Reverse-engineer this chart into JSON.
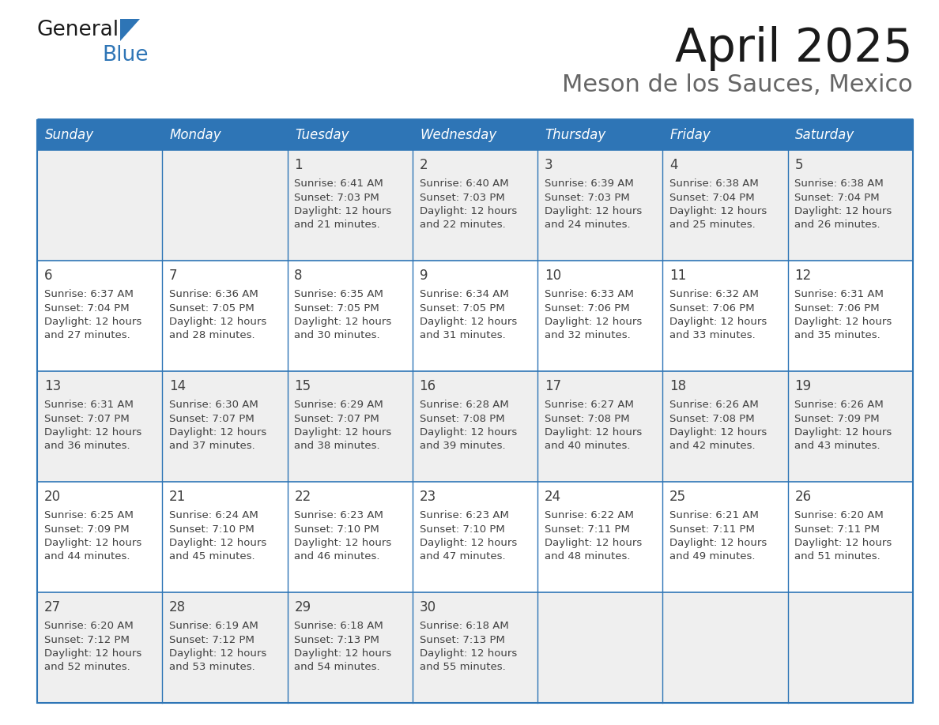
{
  "title": "April 2025",
  "subtitle": "Meson de los Sauces, Mexico",
  "header_color": "#2E75B6",
  "header_text_color": "#FFFFFF",
  "grid_line_color": "#2E75B6",
  "day_names": [
    "Sunday",
    "Monday",
    "Tuesday",
    "Wednesday",
    "Thursday",
    "Friday",
    "Saturday"
  ],
  "cell_bg_row0": "#EFEFEF",
  "cell_bg_row1": "#FFFFFF",
  "cell_bg_row2": "#EFEFEF",
  "cell_bg_row3": "#FFFFFF",
  "cell_bg_row4": "#EFEFEF",
  "text_color": "#404040",
  "days": [
    {
      "day": 1,
      "col": 2,
      "row": 0,
      "sunrise": "6:41 AM",
      "sunset": "7:03 PM",
      "daylight_line1": "Daylight: 12 hours",
      "daylight_line2": "and 21 minutes."
    },
    {
      "day": 2,
      "col": 3,
      "row": 0,
      "sunrise": "6:40 AM",
      "sunset": "7:03 PM",
      "daylight_line1": "Daylight: 12 hours",
      "daylight_line2": "and 22 minutes."
    },
    {
      "day": 3,
      "col": 4,
      "row": 0,
      "sunrise": "6:39 AM",
      "sunset": "7:03 PM",
      "daylight_line1": "Daylight: 12 hours",
      "daylight_line2": "and 24 minutes."
    },
    {
      "day": 4,
      "col": 5,
      "row": 0,
      "sunrise": "6:38 AM",
      "sunset": "7:04 PM",
      "daylight_line1": "Daylight: 12 hours",
      "daylight_line2": "and 25 minutes."
    },
    {
      "day": 5,
      "col": 6,
      "row": 0,
      "sunrise": "6:38 AM",
      "sunset": "7:04 PM",
      "daylight_line1": "Daylight: 12 hours",
      "daylight_line2": "and 26 minutes."
    },
    {
      "day": 6,
      "col": 0,
      "row": 1,
      "sunrise": "6:37 AM",
      "sunset": "7:04 PM",
      "daylight_line1": "Daylight: 12 hours",
      "daylight_line2": "and 27 minutes."
    },
    {
      "day": 7,
      "col": 1,
      "row": 1,
      "sunrise": "6:36 AM",
      "sunset": "7:05 PM",
      "daylight_line1": "Daylight: 12 hours",
      "daylight_line2": "and 28 minutes."
    },
    {
      "day": 8,
      "col": 2,
      "row": 1,
      "sunrise": "6:35 AM",
      "sunset": "7:05 PM",
      "daylight_line1": "Daylight: 12 hours",
      "daylight_line2": "and 30 minutes."
    },
    {
      "day": 9,
      "col": 3,
      "row": 1,
      "sunrise": "6:34 AM",
      "sunset": "7:05 PM",
      "daylight_line1": "Daylight: 12 hours",
      "daylight_line2": "and 31 minutes."
    },
    {
      "day": 10,
      "col": 4,
      "row": 1,
      "sunrise": "6:33 AM",
      "sunset": "7:06 PM",
      "daylight_line1": "Daylight: 12 hours",
      "daylight_line2": "and 32 minutes."
    },
    {
      "day": 11,
      "col": 5,
      "row": 1,
      "sunrise": "6:32 AM",
      "sunset": "7:06 PM",
      "daylight_line1": "Daylight: 12 hours",
      "daylight_line2": "and 33 minutes."
    },
    {
      "day": 12,
      "col": 6,
      "row": 1,
      "sunrise": "6:31 AM",
      "sunset": "7:06 PM",
      "daylight_line1": "Daylight: 12 hours",
      "daylight_line2": "and 35 minutes."
    },
    {
      "day": 13,
      "col": 0,
      "row": 2,
      "sunrise": "6:31 AM",
      "sunset": "7:07 PM",
      "daylight_line1": "Daylight: 12 hours",
      "daylight_line2": "and 36 minutes."
    },
    {
      "day": 14,
      "col": 1,
      "row": 2,
      "sunrise": "6:30 AM",
      "sunset": "7:07 PM",
      "daylight_line1": "Daylight: 12 hours",
      "daylight_line2": "and 37 minutes."
    },
    {
      "day": 15,
      "col": 2,
      "row": 2,
      "sunrise": "6:29 AM",
      "sunset": "7:07 PM",
      "daylight_line1": "Daylight: 12 hours",
      "daylight_line2": "and 38 minutes."
    },
    {
      "day": 16,
      "col": 3,
      "row": 2,
      "sunrise": "6:28 AM",
      "sunset": "7:08 PM",
      "daylight_line1": "Daylight: 12 hours",
      "daylight_line2": "and 39 minutes."
    },
    {
      "day": 17,
      "col": 4,
      "row": 2,
      "sunrise": "6:27 AM",
      "sunset": "7:08 PM",
      "daylight_line1": "Daylight: 12 hours",
      "daylight_line2": "and 40 minutes."
    },
    {
      "day": 18,
      "col": 5,
      "row": 2,
      "sunrise": "6:26 AM",
      "sunset": "7:08 PM",
      "daylight_line1": "Daylight: 12 hours",
      "daylight_line2": "and 42 minutes."
    },
    {
      "day": 19,
      "col": 6,
      "row": 2,
      "sunrise": "6:26 AM",
      "sunset": "7:09 PM",
      "daylight_line1": "Daylight: 12 hours",
      "daylight_line2": "and 43 minutes."
    },
    {
      "day": 20,
      "col": 0,
      "row": 3,
      "sunrise": "6:25 AM",
      "sunset": "7:09 PM",
      "daylight_line1": "Daylight: 12 hours",
      "daylight_line2": "and 44 minutes."
    },
    {
      "day": 21,
      "col": 1,
      "row": 3,
      "sunrise": "6:24 AM",
      "sunset": "7:10 PM",
      "daylight_line1": "Daylight: 12 hours",
      "daylight_line2": "and 45 minutes."
    },
    {
      "day": 22,
      "col": 2,
      "row": 3,
      "sunrise": "6:23 AM",
      "sunset": "7:10 PM",
      "daylight_line1": "Daylight: 12 hours",
      "daylight_line2": "and 46 minutes."
    },
    {
      "day": 23,
      "col": 3,
      "row": 3,
      "sunrise": "6:23 AM",
      "sunset": "7:10 PM",
      "daylight_line1": "Daylight: 12 hours",
      "daylight_line2": "and 47 minutes."
    },
    {
      "day": 24,
      "col": 4,
      "row": 3,
      "sunrise": "6:22 AM",
      "sunset": "7:11 PM",
      "daylight_line1": "Daylight: 12 hours",
      "daylight_line2": "and 48 minutes."
    },
    {
      "day": 25,
      "col": 5,
      "row": 3,
      "sunrise": "6:21 AM",
      "sunset": "7:11 PM",
      "daylight_line1": "Daylight: 12 hours",
      "daylight_line2": "and 49 minutes."
    },
    {
      "day": 26,
      "col": 6,
      "row": 3,
      "sunrise": "6:20 AM",
      "sunset": "7:11 PM",
      "daylight_line1": "Daylight: 12 hours",
      "daylight_line2": "and 51 minutes."
    },
    {
      "day": 27,
      "col": 0,
      "row": 4,
      "sunrise": "6:20 AM",
      "sunset": "7:12 PM",
      "daylight_line1": "Daylight: 12 hours",
      "daylight_line2": "and 52 minutes."
    },
    {
      "day": 28,
      "col": 1,
      "row": 4,
      "sunrise": "6:19 AM",
      "sunset": "7:12 PM",
      "daylight_line1": "Daylight: 12 hours",
      "daylight_line2": "and 53 minutes."
    },
    {
      "day": 29,
      "col": 2,
      "row": 4,
      "sunrise": "6:18 AM",
      "sunset": "7:13 PM",
      "daylight_line1": "Daylight: 12 hours",
      "daylight_line2": "and 54 minutes."
    },
    {
      "day": 30,
      "col": 3,
      "row": 4,
      "sunrise": "6:18 AM",
      "sunset": "7:13 PM",
      "daylight_line1": "Daylight: 12 hours",
      "daylight_line2": "and 55 minutes."
    }
  ]
}
